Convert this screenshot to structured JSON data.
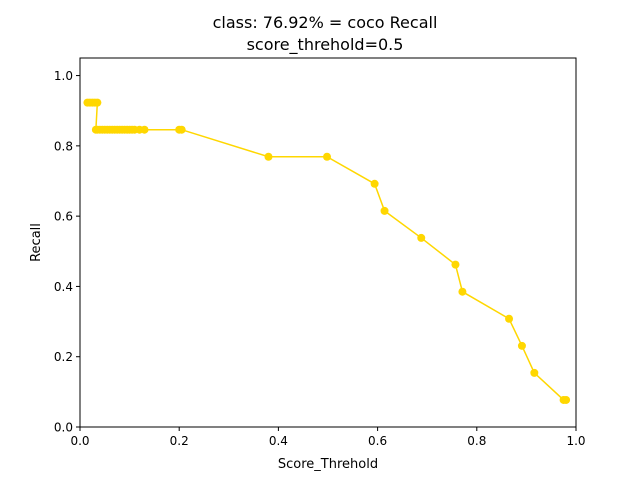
{
  "chart_data": {
    "type": "line",
    "title": "class: 76.92% = coco Recall",
    "subtitle": "score_threhold=0.5",
    "xlabel": "Score_Threhold",
    "ylabel": "Recall",
    "xlim": [
      0.0,
      1.0
    ],
    "ylim": [
      0.0,
      1.05
    ],
    "xticks": [
      0.0,
      0.2,
      0.4,
      0.6,
      0.8,
      1.0
    ],
    "xtick_labels": [
      "0.0",
      "0.2",
      "0.4",
      "0.6",
      "0.8",
      "1.0"
    ],
    "yticks": [
      0.0,
      0.2,
      0.4,
      0.6,
      0.8,
      1.0
    ],
    "ytick_labels": [
      "0.0",
      "0.2",
      "0.4",
      "0.6",
      "0.8",
      "1.0"
    ],
    "grid": false,
    "color": "#FFD700",
    "series": [
      {
        "x": [
          0.015,
          0.02,
          0.025,
          0.03,
          0.035,
          0.032,
          0.035,
          0.04,
          0.045,
          0.05,
          0.055,
          0.06,
          0.065,
          0.07,
          0.075,
          0.08,
          0.085,
          0.09,
          0.095,
          0.1,
          0.105,
          0.11,
          0.12,
          0.13,
          0.2,
          0.205,
          0.38,
          0.498,
          0.594,
          0.614,
          0.688,
          0.757,
          0.771,
          0.865,
          0.891,
          0.916,
          0.975,
          0.98
        ],
        "y": [
          0.923,
          0.923,
          0.923,
          0.923,
          0.923,
          0.846,
          0.846,
          0.846,
          0.846,
          0.846,
          0.846,
          0.846,
          0.846,
          0.846,
          0.846,
          0.846,
          0.846,
          0.846,
          0.846,
          0.846,
          0.846,
          0.846,
          0.846,
          0.846,
          0.846,
          0.846,
          0.769,
          0.769,
          0.692,
          0.615,
          0.538,
          0.462,
          0.385,
          0.308,
          0.231,
          0.154,
          0.077,
          0.077
        ]
      }
    ]
  }
}
